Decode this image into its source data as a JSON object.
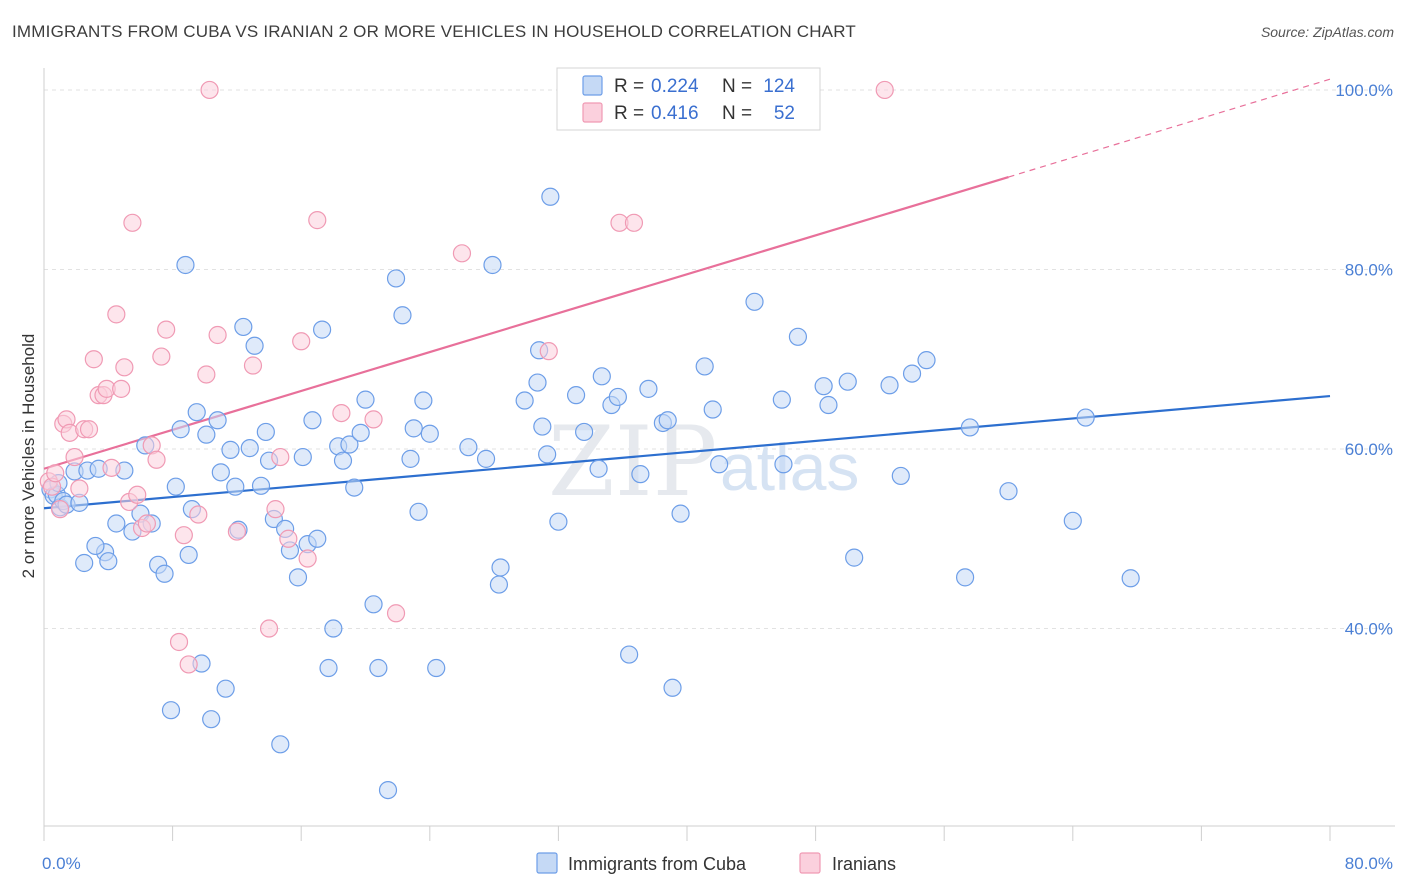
{
  "title": "IMMIGRANTS FROM CUBA VS IRANIAN 2 OR MORE VEHICLES IN HOUSEHOLD CORRELATION CHART",
  "source": "Source: ZipAtlas.com",
  "watermark": {
    "part1": "ZIP",
    "part2": "atlas"
  },
  "legend_stats": [
    {
      "r_label": "R =",
      "r_value": "0.224",
      "n_label": "N =",
      "n_value": "124",
      "color": "#6d9ee8",
      "fill": "#c5d9f5"
    },
    {
      "r_label": "R =",
      "r_value": "0.416",
      "n_label": "N =",
      "n_value": "52",
      "color": "#f09ab4",
      "fill": "#fbd0dd"
    }
  ],
  "chart_data": {
    "type": "scatter",
    "xlabel": "",
    "ylabel": "2 or more Vehicles in Household",
    "xlim": [
      0,
      80
    ],
    "ylim": [
      18,
      102
    ],
    "x_tick_labels": [
      "0.0%",
      "80.0%"
    ],
    "y_ticks": [
      40,
      60,
      80,
      100
    ],
    "y_tick_labels": [
      "40.0%",
      "60.0%",
      "80.0%",
      "100.0%"
    ],
    "grid": true,
    "legend_position": "bottom",
    "series": [
      {
        "name": "Immigrants from Cuba",
        "color": "#6d9ee8",
        "fill": "#c5d9f5",
        "trend": {
          "x": [
            0,
            80
          ],
          "y": [
            53.4,
            65.9
          ],
          "color": "#2d6fcf"
        },
        "points": [
          [
            0.4,
            55.5
          ],
          [
            0.6,
            54.8
          ],
          [
            0.8,
            54.9
          ],
          [
            1.0,
            53.5
          ],
          [
            1.2,
            54.2
          ],
          [
            1.4,
            53.8
          ],
          [
            0.9,
            56.2
          ],
          [
            1.9,
            57.5
          ],
          [
            2.2,
            54.0
          ],
          [
            2.7,
            57.6
          ],
          [
            3.4,
            57.8
          ],
          [
            3.8,
            48.5
          ],
          [
            4.0,
            47.5
          ],
          [
            4.5,
            51.7
          ],
          [
            5.0,
            57.6
          ],
          [
            5.5,
            50.8
          ],
          [
            6.0,
            52.8
          ],
          [
            6.3,
            60.4
          ],
          [
            6.7,
            51.7
          ],
          [
            7.1,
            47.1
          ],
          [
            7.5,
            46.1
          ],
          [
            7.9,
            30.9
          ],
          [
            8.2,
            55.8
          ],
          [
            8.5,
            62.2
          ],
          [
            8.8,
            80.5
          ],
          [
            9.0,
            48.2
          ],
          [
            9.2,
            53.3
          ],
          [
            9.5,
            64.1
          ],
          [
            9.8,
            36.1
          ],
          [
            10.1,
            61.6
          ],
          [
            10.4,
            29.9
          ],
          [
            10.8,
            63.2
          ],
          [
            11.0,
            57.4
          ],
          [
            11.3,
            33.3
          ],
          [
            11.6,
            59.9
          ],
          [
            11.9,
            55.8
          ],
          [
            12.1,
            51.0
          ],
          [
            12.4,
            73.6
          ],
          [
            12.8,
            60.1
          ],
          [
            13.1,
            71.5
          ],
          [
            13.5,
            55.9
          ],
          [
            13.8,
            61.9
          ],
          [
            14.0,
            58.7
          ],
          [
            14.3,
            52.2
          ],
          [
            14.7,
            27.1
          ],
          [
            15.0,
            51.1
          ],
          [
            15.3,
            48.7
          ],
          [
            15.8,
            45.7
          ],
          [
            16.1,
            59.1
          ],
          [
            16.4,
            49.4
          ],
          [
            16.7,
            63.2
          ],
          [
            17.0,
            50.0
          ],
          [
            17.3,
            73.3
          ],
          [
            17.7,
            35.6
          ],
          [
            18.0,
            40.0
          ],
          [
            18.3,
            60.3
          ],
          [
            18.6,
            58.7
          ],
          [
            19.0,
            60.5
          ],
          [
            19.3,
            55.7
          ],
          [
            19.7,
            61.8
          ],
          [
            20.0,
            65.5
          ],
          [
            20.5,
            42.7
          ],
          [
            20.8,
            35.6
          ],
          [
            21.4,
            22.0
          ],
          [
            21.9,
            79.0
          ],
          [
            22.3,
            74.9
          ],
          [
            22.8,
            58.9
          ],
          [
            23.0,
            62.3
          ],
          [
            23.3,
            53.0
          ],
          [
            23.6,
            65.4
          ],
          [
            24.0,
            61.7
          ],
          [
            24.4,
            35.6
          ],
          [
            26.4,
            60.2
          ],
          [
            27.5,
            58.9
          ],
          [
            27.9,
            80.5
          ],
          [
            28.4,
            46.8
          ],
          [
            28.3,
            44.9
          ],
          [
            29.9,
            65.4
          ],
          [
            30.7,
            67.4
          ],
          [
            30.8,
            71.0
          ],
          [
            31.0,
            62.5
          ],
          [
            31.3,
            59.4
          ],
          [
            31.5,
            88.1
          ],
          [
            32.0,
            51.9
          ],
          [
            33.1,
            66.0
          ],
          [
            33.6,
            61.9
          ],
          [
            34.5,
            57.8
          ],
          [
            34.7,
            68.1
          ],
          [
            35.3,
            64.9
          ],
          [
            35.7,
            65.8
          ],
          [
            36.4,
            37.1
          ],
          [
            37.1,
            57.2
          ],
          [
            37.6,
            66.7
          ],
          [
            38.5,
            62.9
          ],
          [
            38.8,
            63.2
          ],
          [
            39.1,
            33.4
          ],
          [
            39.6,
            52.8
          ],
          [
            41.1,
            69.2
          ],
          [
            41.6,
            64.4
          ],
          [
            42.0,
            58.3
          ],
          [
            44.2,
            76.4
          ],
          [
            45.9,
            65.5
          ],
          [
            46.0,
            58.3
          ],
          [
            46.9,
            72.5
          ],
          [
            48.5,
            67.0
          ],
          [
            48.8,
            64.9
          ],
          [
            50.0,
            67.5
          ],
          [
            50.4,
            47.9
          ],
          [
            52.6,
            67.1
          ],
          [
            53.3,
            57.0
          ],
          [
            54.0,
            68.4
          ],
          [
            54.9,
            69.9
          ],
          [
            57.3,
            45.7
          ],
          [
            57.6,
            62.4
          ],
          [
            60.0,
            55.3
          ],
          [
            64.0,
            52.0
          ],
          [
            64.8,
            63.5
          ],
          [
            67.6,
            45.6
          ],
          [
            2.5,
            47.3
          ],
          [
            3.2,
            49.2
          ]
        ]
      },
      {
        "name": "Iranians",
        "color": "#f09ab4",
        "fill": "#fbd0dd",
        "trend": {
          "x": [
            0,
            60
          ],
          "y": [
            57.8,
            90.3
          ],
          "color": "#e8709a",
          "dash_to": {
            "x": 80,
            "y": 101.2
          }
        },
        "points": [
          [
            0.3,
            56.4
          ],
          [
            0.5,
            55.8
          ],
          [
            0.7,
            57.3
          ],
          [
            1.0,
            53.3
          ],
          [
            1.2,
            62.8
          ],
          [
            1.4,
            63.3
          ],
          [
            1.6,
            61.8
          ],
          [
            1.9,
            59.1
          ],
          [
            2.2,
            55.6
          ],
          [
            2.5,
            62.2
          ],
          [
            2.8,
            62.2
          ],
          [
            3.1,
            70.0
          ],
          [
            3.4,
            66.0
          ],
          [
            3.7,
            66.0
          ],
          [
            3.9,
            66.7
          ],
          [
            4.2,
            57.9
          ],
          [
            4.5,
            75.0
          ],
          [
            4.8,
            66.7
          ],
          [
            5.0,
            69.1
          ],
          [
            5.3,
            54.1
          ],
          [
            5.5,
            85.2
          ],
          [
            5.8,
            54.9
          ],
          [
            6.1,
            51.2
          ],
          [
            6.4,
            51.7
          ],
          [
            6.7,
            60.4
          ],
          [
            7.0,
            58.8
          ],
          [
            7.3,
            70.3
          ],
          [
            7.6,
            73.3
          ],
          [
            8.4,
            38.5
          ],
          [
            8.7,
            50.4
          ],
          [
            9.0,
            36.0
          ],
          [
            9.6,
            52.7
          ],
          [
            10.1,
            68.3
          ],
          [
            10.3,
            100.0
          ],
          [
            10.8,
            72.7
          ],
          [
            12.0,
            50.8
          ],
          [
            13.0,
            69.3
          ],
          [
            14.0,
            40.0
          ],
          [
            14.4,
            53.3
          ],
          [
            14.7,
            59.1
          ],
          [
            15.2,
            50.0
          ],
          [
            16.0,
            72.0
          ],
          [
            16.4,
            47.8
          ],
          [
            17.0,
            85.5
          ],
          [
            18.5,
            64.0
          ],
          [
            20.5,
            63.3
          ],
          [
            21.9,
            41.7
          ],
          [
            26.0,
            81.8
          ],
          [
            31.4,
            70.9
          ],
          [
            35.8,
            85.2
          ],
          [
            36.7,
            85.2
          ],
          [
            52.3,
            100.0
          ]
        ]
      }
    ]
  }
}
